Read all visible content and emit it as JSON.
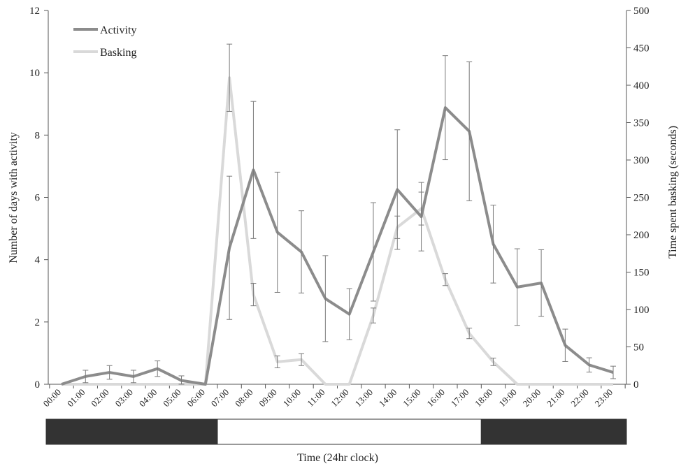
{
  "chart_data": {
    "type": "line",
    "title": "",
    "xlabel": "Time (24hr clock)",
    "ylabel_left": "Number of days with activity",
    "ylabel_right": "Time spent basking (seconds)",
    "categories": [
      "00:00",
      "01:00",
      "02:00",
      "03:00",
      "04:00",
      "05:00",
      "06:00",
      "07:00",
      "08:00",
      "09:00",
      "10:00",
      "11:00",
      "12:00",
      "13:00",
      "14:00",
      "15:00",
      "16:00",
      "17:00",
      "18:00",
      "19:00",
      "20:00",
      "21:00",
      "22:00",
      "23:00"
    ],
    "y_left": {
      "range": [
        0,
        12
      ],
      "ticks": [
        "0",
        "2",
        "4",
        "6",
        "8",
        "10",
        "12"
      ]
    },
    "y_right": {
      "range": [
        0,
        500
      ],
      "ticks": [
        "0",
        "50",
        "100",
        "150",
        "200",
        "250",
        "300",
        "350",
        "400",
        "450",
        "500"
      ]
    },
    "legend_position": "top-left",
    "grid": false,
    "series": [
      {
        "name": "Activity",
        "axis": "left",
        "color": "#8c8c8c",
        "values": [
          0,
          0.25,
          0.38,
          0.25,
          0.5,
          0.12,
          0,
          4.38,
          6.88,
          4.88,
          4.25,
          2.75,
          2.25,
          4.25,
          6.25,
          5.38,
          8.88,
          8.12,
          4.5,
          3.12,
          3.25,
          1.25,
          0.62,
          0.38
        ],
        "err": [
          0,
          0.2,
          0.22,
          0.2,
          0.25,
          0.15,
          0,
          2.3,
          2.2,
          1.93,
          1.32,
          1.38,
          0.82,
          1.58,
          1.92,
          1.1,
          1.67,
          2.23,
          1.25,
          1.23,
          1.07,
          0.52,
          0.23,
          0.2
        ]
      },
      {
        "name": "Basking",
        "axis": "right",
        "color": "#d9d9d9",
        "values": [
          0,
          0,
          0,
          0,
          0,
          0,
          0,
          410,
          120,
          30,
          33,
          0,
          0,
          92,
          210,
          235,
          140,
          68,
          30,
          0,
          0,
          0,
          0,
          0
        ],
        "err": [
          0,
          0,
          0,
          0,
          0,
          0,
          0,
          45,
          15,
          8,
          8,
          0,
          0,
          10,
          15,
          22,
          8,
          7,
          5,
          0,
          0,
          0,
          0,
          0
        ]
      }
    ],
    "day_night_bar": [
      {
        "from": "00:00",
        "to": "06:00",
        "phase": "night",
        "color": "#333333"
      },
      {
        "from": "07:00",
        "to": "17:00",
        "phase": "day",
        "color": "#ffffff"
      },
      {
        "from": "18:00",
        "to": "23:00",
        "phase": "night",
        "color": "#333333"
      }
    ]
  }
}
